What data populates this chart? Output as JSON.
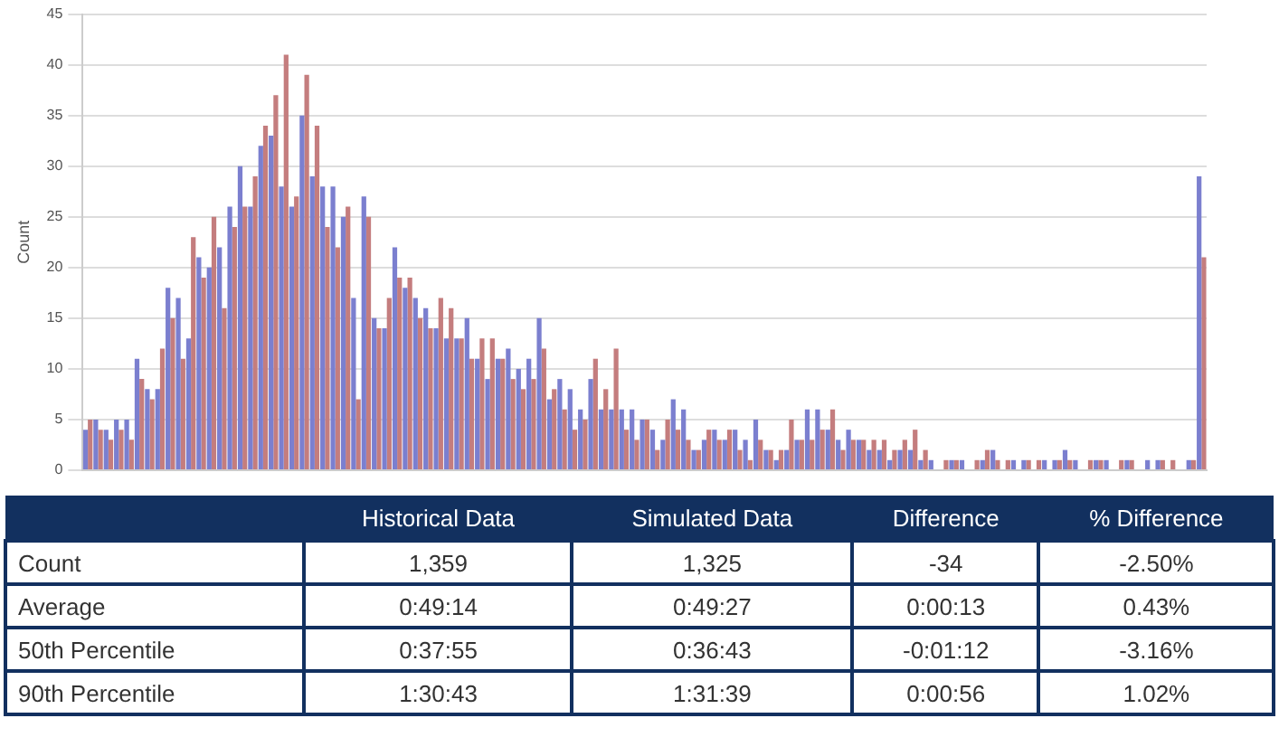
{
  "chart_data": {
    "type": "bar",
    "ylabel": "Count",
    "ylim": [
      0,
      45
    ],
    "yticks": [
      0,
      5,
      10,
      15,
      20,
      25,
      30,
      35,
      40,
      45
    ],
    "grid": "y",
    "categories": [
      null,
      null,
      null,
      null,
      null,
      null,
      null,
      null,
      null,
      null,
      null,
      null,
      null,
      null,
      null,
      null,
      null,
      null,
      null,
      null,
      null,
      null,
      null,
      null,
      null,
      null,
      null,
      null,
      null,
      null,
      null,
      null,
      null,
      null,
      null,
      null,
      null,
      null,
      null,
      null,
      null,
      null,
      null,
      null,
      null,
      null,
      null,
      null,
      null,
      null,
      null,
      null,
      null,
      null,
      null,
      null,
      null,
      null,
      null,
      null,
      null,
      null,
      null,
      null,
      null,
      null,
      null,
      null,
      null,
      null,
      null,
      null,
      null,
      null,
      null,
      null,
      null,
      null,
      null,
      null,
      null,
      null,
      null,
      null,
      null,
      null,
      null,
      null,
      null,
      null,
      null,
      null,
      null,
      null,
      null,
      null,
      null,
      null,
      null,
      null,
      null,
      null,
      null,
      null,
      null,
      null,
      null,
      null,
      null
    ],
    "series": [
      {
        "color": "#7b7fcf",
        "values": [
          4,
          5,
          4,
          5,
          5,
          11,
          8,
          8,
          18,
          17,
          13,
          21,
          20,
          22,
          26,
          30,
          26,
          32,
          33,
          28,
          26,
          35,
          29,
          28,
          28,
          25,
          17,
          27,
          15,
          14,
          22,
          18,
          17,
          16,
          14,
          13,
          13,
          15,
          11,
          9,
          11,
          12,
          10,
          11,
          15,
          7,
          9,
          8,
          6,
          9,
          6,
          6,
          6,
          6,
          5,
          4,
          3,
          7,
          6,
          2,
          3,
          4,
          3,
          4,
          3,
          5,
          2,
          1,
          2,
          3,
          6,
          6,
          4,
          3,
          4,
          3,
          2,
          2,
          1,
          2,
          2,
          1,
          1,
          0,
          1,
          1,
          0,
          1,
          2,
          0,
          1,
          1,
          0,
          1,
          1,
          2,
          1,
          0,
          1,
          1,
          0,
          1,
          0,
          1,
          1,
          0,
          0,
          1,
          29
        ]
      },
      {
        "color": "#c47d7e",
        "values": [
          5,
          4,
          3,
          4,
          3,
          9,
          7,
          12,
          15,
          11,
          23,
          19,
          25,
          16,
          24,
          26,
          29,
          34,
          37,
          41,
          27,
          39,
          34,
          24,
          22,
          26,
          7,
          25,
          14,
          17,
          19,
          19,
          15,
          14,
          17,
          16,
          13,
          11,
          13,
          13,
          11,
          9,
          8,
          9,
          12,
          8,
          6,
          4,
          5,
          11,
          8,
          12,
          4,
          3,
          5,
          2,
          5,
          4,
          3,
          2,
          4,
          3,
          4,
          2,
          1,
          3,
          2,
          2,
          5,
          3,
          3,
          4,
          6,
          2,
          3,
          3,
          3,
          3,
          2,
          3,
          4,
          2,
          0,
          1,
          1,
          0,
          1,
          2,
          1,
          1,
          0,
          1,
          1,
          0,
          1,
          1,
          0,
          1,
          1,
          0,
          1,
          1,
          0,
          0,
          1,
          1,
          0,
          1,
          21
        ]
      }
    ],
    "annotations": [
      "Historical Data",
      "Simulated Data",
      "Difference",
      "% Difference",
      "Count",
      "1,359",
      "1,325",
      "-34",
      "-2.50%",
      "Average",
      "0:49:14",
      "0:49:27",
      "0:00:13",
      "0.43%",
      "50th Percentile",
      "0:37:55",
      "0:36:43",
      "-0:01:12",
      "-3.16%",
      "90th Percentile",
      "1:30:43",
      "1:31:39",
      "0:00:56",
      "1.02%"
    ]
  }
}
